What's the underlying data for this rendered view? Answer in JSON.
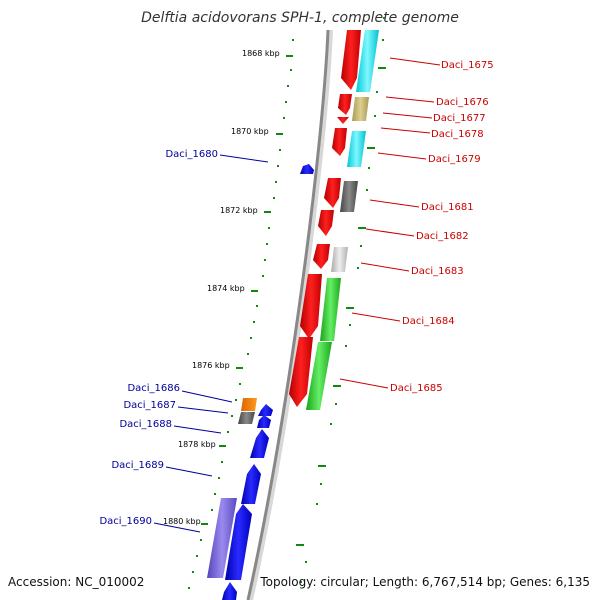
{
  "title": "Delftia acidovorans SPH-1, complete genome",
  "accession": "Accession: NC_010002",
  "summary": "Topology: circular; Length: 6,767,514 bp; Genes: 6,135",
  "scale_labels": [
    "1868 kbp",
    "1870 kbp",
    "1872 kbp",
    "1874 kbp",
    "1876 kbp",
    "1878 kbp",
    "1880 kbp"
  ],
  "genes_right": [
    "Daci_1675",
    "Daci_1676",
    "Daci_1677",
    "Daci_1678",
    "Daci_1679",
    "Daci_1681",
    "Daci_1682",
    "Daci_1683",
    "Daci_1684",
    "Daci_1685"
  ],
  "genes_left": [
    "Daci_1680",
    "Daci_1686",
    "Daci_1687",
    "Daci_1688",
    "Daci_1689",
    "Daci_1690"
  ],
  "colors": {
    "forward": "#ee0000",
    "reverse": "#0000ee",
    "right_label": "#cc0000",
    "left_label": "#000099",
    "tick": "#118811",
    "backbone": "#888888"
  }
}
